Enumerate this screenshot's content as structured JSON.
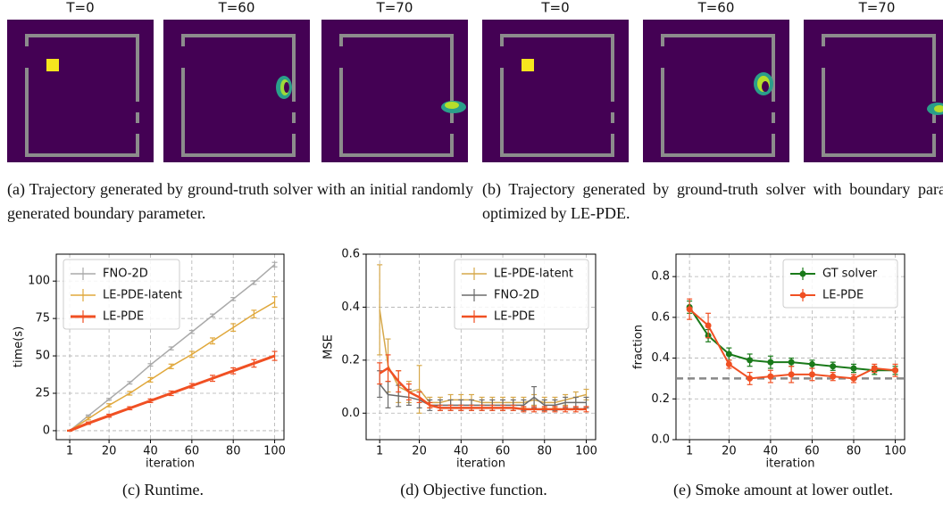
{
  "frame_labels": [
    "T=0",
    "T=60",
    "T=70",
    "T=0",
    "T=60",
    "T=70"
  ],
  "captions": [
    "(a) Trajectory generated by ground-truth solver with an initial randomly generated boundary parameter.",
    "(b) Trajectory generated by ground-truth solver with boundary parameter optimized by LE-PDE."
  ],
  "chart_data": [
    {
      "type": "line",
      "caption": "(c) Runtime.",
      "xlabel": "iteration",
      "ylabel": "time(s)",
      "x": [
        1,
        10,
        20,
        30,
        40,
        50,
        60,
        70,
        80,
        90,
        100
      ],
      "xlim": [
        -5.5,
        104.5
      ],
      "ylim": [
        -6,
        118
      ],
      "xticks": [
        1,
        20,
        40,
        60,
        80,
        100
      ],
      "yticks": [
        0,
        25,
        50,
        75,
        100
      ],
      "grid": true,
      "legend": "upper left",
      "series": [
        {
          "name": "FNO-2D",
          "color": "#aaaaaa",
          "linewidth": 1.5,
          "values": [
            0,
            10,
            21,
            32,
            44,
            55,
            66,
            77,
            88,
            99,
            111
          ],
          "errors": [
            0.3,
            0.5,
            0.6,
            0.8,
            0.8,
            1,
            1,
            1,
            1,
            1.2,
            1.5
          ]
        },
        {
          "name": "LE-PDE-latent",
          "color": "#e0a83c",
          "linewidth": 1.5,
          "values": [
            0,
            8,
            17,
            25,
            34,
            43,
            51,
            60,
            69,
            78,
            86
          ],
          "errors": [
            0.3,
            0.8,
            1,
            1.2,
            1.5,
            1.5,
            2,
            2,
            2.5,
            2.5,
            3.5
          ]
        },
        {
          "name": "LE-PDE",
          "color": "#f05023",
          "linewidth": 3,
          "values": [
            0,
            5,
            10,
            15,
            20,
            25,
            30,
            35,
            40,
            45,
            50
          ],
          "errors": [
            0.3,
            0.8,
            1,
            1,
            1.2,
            1.5,
            1.5,
            2,
            2,
            2.5,
            3
          ]
        }
      ]
    },
    {
      "type": "line",
      "caption": "(d) Objective function.",
      "xlabel": "iteration",
      "ylabel": "MSE",
      "x": [
        1,
        5,
        10,
        15,
        20,
        25,
        30,
        35,
        40,
        45,
        50,
        55,
        60,
        65,
        70,
        75,
        80,
        85,
        90,
        95,
        100
      ],
      "xlim": [
        -5.5,
        104.5
      ],
      "ylim": [
        -0.1,
        0.6
      ],
      "xticks": [
        1,
        20,
        40,
        60,
        80,
        100
      ],
      "yticks": [
        {
          "value": 0,
          "label": "0.0"
        },
        0.2,
        0.4,
        0.6
      ],
      "grid": true,
      "legend": "upper right",
      "series": [
        {
          "name": "LE-PDE-latent",
          "color": "#d6a84a",
          "linewidth": 1.5,
          "values": [
            0.39,
            0.18,
            0.1,
            0.08,
            0.09,
            0.04,
            0.04,
            0.05,
            0.05,
            0.05,
            0.04,
            0.04,
            0.04,
            0.04,
            0.04,
            0.05,
            0.04,
            0.04,
            0.05,
            0.06,
            0.07
          ],
          "errors": [
            0.17,
            0.1,
            0.06,
            0.04,
            0.09,
            0.02,
            0.02,
            0.02,
            0.02,
            0.02,
            0.02,
            0.02,
            0.02,
            0.02,
            0.02,
            0.02,
            0.02,
            0.02,
            0.02,
            0.02,
            0.02
          ]
        },
        {
          "name": "FNO-2D",
          "color": "#6b6b6b",
          "linewidth": 1.5,
          "values": [
            0.11,
            0.07,
            0.065,
            0.06,
            0.05,
            0.03,
            0.03,
            0.03,
            0.03,
            0.03,
            0.03,
            0.03,
            0.03,
            0.03,
            0.03,
            0.06,
            0.03,
            0.03,
            0.04,
            0.04,
            0.04
          ],
          "errors": [
            0.05,
            0.05,
            0.04,
            0.03,
            0.03,
            0.02,
            0.02,
            0.02,
            0.02,
            0.02,
            0.02,
            0.02,
            0.02,
            0.02,
            0.02,
            0.04,
            0.02,
            0.02,
            0.02,
            0.02,
            0.02
          ]
        },
        {
          "name": "LE-PDE",
          "color": "#f05023",
          "linewidth": 2.5,
          "values": [
            0.15,
            0.17,
            0.12,
            0.08,
            0.06,
            0.03,
            0.02,
            0.02,
            0.02,
            0.02,
            0.02,
            0.02,
            0.02,
            0.02,
            0.015,
            0.015,
            0.015,
            0.015,
            0.015,
            0.015,
            0.015
          ],
          "errors": [
            0.04,
            0.05,
            0.04,
            0.03,
            0.02,
            0.01,
            0.01,
            0.01,
            0.01,
            0.01,
            0.01,
            0.01,
            0.01,
            0.01,
            0.01,
            0.01,
            0.01,
            0.01,
            0.01,
            0.01,
            0.01
          ]
        }
      ]
    },
    {
      "type": "line",
      "caption": "(e) Smoke amount at lower outlet.",
      "xlabel": "iteration",
      "ylabel": "fraction",
      "x": [
        1,
        10,
        20,
        30,
        40,
        50,
        60,
        70,
        80,
        90,
        100
      ],
      "xlim": [
        -5.5,
        104.5
      ],
      "ylim": [
        0,
        0.91
      ],
      "xticks": [
        1,
        20,
        40,
        60,
        80,
        100
      ],
      "yticks": [
        {
          "value": 0,
          "label": "0.0"
        },
        0.2,
        0.4,
        0.6,
        0.8
      ],
      "grid": true,
      "legend": "upper right",
      "reference_line": 0.3,
      "series": [
        {
          "name": "GT solver",
          "color": "#1a7a1a",
          "linewidth": 2,
          "marker": true,
          "values": [
            0.65,
            0.51,
            0.42,
            0.39,
            0.38,
            0.38,
            0.37,
            0.36,
            0.35,
            0.34,
            0.34
          ],
          "errors": [
            0.03,
            0.03,
            0.03,
            0.03,
            0.03,
            0.02,
            0.02,
            0.02,
            0.02,
            0.02,
            0.02
          ]
        },
        {
          "name": "LE-PDE",
          "color": "#f05023",
          "linewidth": 2,
          "marker": true,
          "values": [
            0.64,
            0.56,
            0.37,
            0.3,
            0.31,
            0.32,
            0.32,
            0.31,
            0.3,
            0.35,
            0.34
          ],
          "errors": [
            0.05,
            0.06,
            0.02,
            0.03,
            0.03,
            0.04,
            0.03,
            0.02,
            0.02,
            0.02,
            0.03
          ]
        }
      ]
    }
  ]
}
